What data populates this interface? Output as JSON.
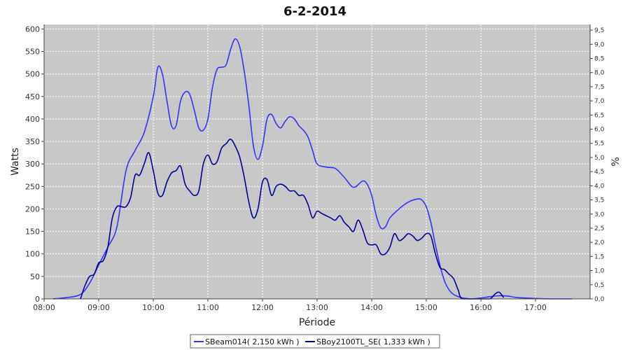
{
  "chart_data": {
    "type": "line",
    "title": "6-2-2014",
    "xlabel": "Période",
    "ylabel": "Watts",
    "y2label": "%",
    "xlim": [
      8.0,
      18.0
    ],
    "ylim": [
      0,
      610
    ],
    "y2lim": [
      0,
      9.7
    ],
    "x_ticks": [
      "08:00",
      "09:00",
      "10:00",
      "11:00",
      "12:00",
      "13:00",
      "14:00",
      "15:00",
      "16:00",
      "17:00"
    ],
    "y_ticks": [
      0,
      50,
      100,
      150,
      200,
      250,
      300,
      350,
      400,
      450,
      500,
      550,
      600
    ],
    "y2_ticks": [
      "0,0",
      "0,5",
      "1,0",
      "1,5",
      "2,0",
      "2,5",
      "3,0",
      "3,5",
      "4,0",
      "4,5",
      "5,0",
      "5,5",
      "6,0",
      "6,5",
      "7,0",
      "7,5",
      "8,0",
      "8,5",
      "9,0",
      "9,5"
    ],
    "grid": true,
    "legend_position": "bottom",
    "series": [
      {
        "name": "SBeam014( 2,150 kWh )",
        "color": "#3333ff",
        "x": [
          "08:10",
          "08:25",
          "08:40",
          "08:50",
          "09:00",
          "09:10",
          "09:20",
          "09:30",
          "09:40",
          "09:50",
          "10:00",
          "10:05",
          "10:10",
          "10:15",
          "10:20",
          "10:25",
          "10:30",
          "10:35",
          "10:40",
          "10:45",
          "10:50",
          "10:55",
          "11:00",
          "11:05",
          "11:10",
          "11:15",
          "11:20",
          "11:25",
          "11:30",
          "11:35",
          "11:40",
          "11:45",
          "11:50",
          "11:55",
          "12:00",
          "12:05",
          "12:10",
          "12:15",
          "12:20",
          "12:25",
          "12:30",
          "12:35",
          "12:40",
          "12:45",
          "12:50",
          "12:55",
          "13:00",
          "13:10",
          "13:20",
          "13:30",
          "13:40",
          "13:50",
          "13:55",
          "14:00",
          "14:05",
          "14:10",
          "14:15",
          "14:20",
          "14:30",
          "14:40",
          "14:50",
          "14:55",
          "15:00",
          "15:05",
          "15:10",
          "15:15",
          "15:20",
          "15:25",
          "15:30",
          "15:35",
          "15:40",
          "15:45",
          "15:50",
          "16:00",
          "16:10",
          "16:20",
          "16:30",
          "16:40",
          "17:00",
          "17:20",
          "17:40"
        ],
        "y": [
          0,
          3,
          10,
          35,
          75,
          115,
          160,
          285,
          330,
          370,
          450,
          515,
          500,
          440,
          385,
          385,
          440,
          460,
          455,
          420,
          380,
          375,
          400,
          470,
          510,
          515,
          520,
          555,
          578,
          560,
          505,
          430,
          340,
          310,
          340,
          400,
          410,
          390,
          380,
          395,
          405,
          400,
          385,
          375,
          360,
          330,
          300,
          293,
          290,
          270,
          248,
          262,
          255,
          230,
          185,
          158,
          160,
          180,
          200,
          215,
          222,
          220,
          205,
          170,
          120,
          75,
          40,
          20,
          10,
          5,
          2,
          1,
          0,
          2,
          5,
          7,
          6,
          3,
          1,
          0,
          0
        ]
      },
      {
        "name": "SBoy2100TL_SE( 1,333 kWh )",
        "color": "#000099",
        "x": [
          "08:40",
          "08:45",
          "08:50",
          "08:55",
          "09:00",
          "09:05",
          "09:10",
          "09:15",
          "09:20",
          "09:25",
          "09:30",
          "09:35",
          "09:40",
          "09:45",
          "09:50",
          "09:55",
          "10:00",
          "10:05",
          "10:10",
          "10:15",
          "10:20",
          "10:25",
          "10:30",
          "10:35",
          "10:40",
          "10:45",
          "10:50",
          "10:55",
          "11:00",
          "11:05",
          "11:10",
          "11:15",
          "11:20",
          "11:25",
          "11:30",
          "11:35",
          "11:40",
          "11:45",
          "11:50",
          "11:55",
          "12:00",
          "12:05",
          "12:10",
          "12:15",
          "12:20",
          "12:25",
          "12:30",
          "12:35",
          "12:40",
          "12:45",
          "12:50",
          "12:55",
          "13:00",
          "13:05",
          "13:10",
          "13:15",
          "13:20",
          "13:25",
          "13:30",
          "13:35",
          "13:40",
          "13:45",
          "13:50",
          "13:55",
          "14:00",
          "14:05",
          "14:10",
          "14:15",
          "14:20",
          "14:25",
          "14:30",
          "14:35",
          "14:40",
          "14:45",
          "14:50",
          "14:55",
          "15:00",
          "15:05",
          "15:10",
          "15:15",
          "15:20",
          "15:25",
          "15:30",
          "15:35",
          "15:40",
          "16:00",
          "16:10",
          "16:15",
          "16:20",
          "16:25"
        ],
        "y": [
          0,
          30,
          50,
          55,
          80,
          85,
          115,
          180,
          205,
          205,
          205,
          225,
          275,
          275,
          300,
          325,
          285,
          235,
          230,
          260,
          280,
          285,
          295,
          255,
          240,
          230,
          240,
          300,
          320,
          300,
          305,
          335,
          345,
          355,
          340,
          315,
          270,
          215,
          180,
          200,
          260,
          265,
          230,
          250,
          255,
          250,
          240,
          240,
          230,
          230,
          210,
          180,
          195,
          190,
          185,
          180,
          175,
          185,
          170,
          160,
          150,
          175,
          155,
          125,
          120,
          120,
          100,
          100,
          115,
          145,
          130,
          135,
          145,
          140,
          130,
          135,
          145,
          140,
          100,
          70,
          65,
          55,
          45,
          20,
          0,
          0,
          0,
          10,
          15,
          3
        ]
      }
    ]
  }
}
